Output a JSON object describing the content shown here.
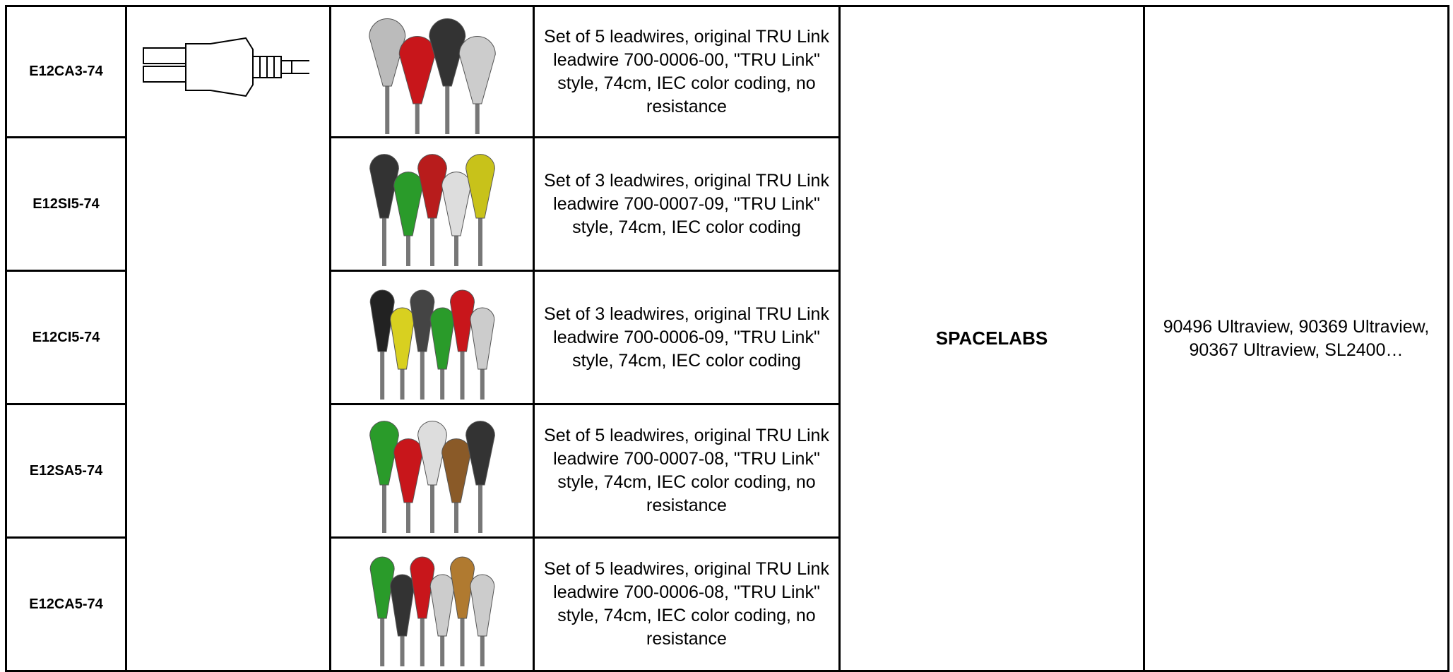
{
  "table": {
    "rows": [
      {
        "code": "E12CA3-74",
        "description": "Set of 5 leadwires, original TRU Link leadwire 700-0006-00, \"TRU Link\" style, 74cm, IEC color coding, no resistance"
      },
      {
        "code": "E12SI5-74",
        "description": "Set of 3 leadwires, original TRU Link leadwire 700-0007-09, \"TRU Link\" style, 74cm, IEC color coding"
      },
      {
        "code": "E12CI5-74",
        "description": "Set of 3 leadwires, original TRU Link leadwire 700-0006-09, \"TRU Link\" style, 74cm, IEC color coding"
      },
      {
        "code": "E12SA5-74",
        "description": "Set of 5 leadwires, original TRU Link leadwire 700-0007-08, \"TRU Link\" style, 74cm, IEC color coding, no resistance"
      },
      {
        "code": "E12CA5-74",
        "description": "Set of 5 leadwires, original TRU Link leadwire 700-0006-08, \"TRU Link\" style, 74cm, IEC color coding, no resistance"
      }
    ],
    "brand": "SPACELABS",
    "compatibility": "90496 Ultraview, 90369 Ultraview, 90367 Ultraview, SL2400…"
  }
}
